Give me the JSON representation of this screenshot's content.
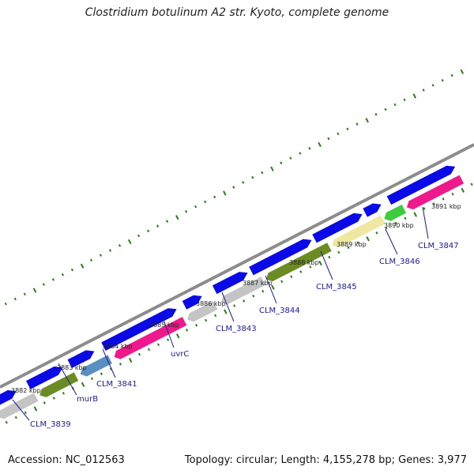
{
  "title": "Clostridium botulinum A2 str. Kyoto, complete genome",
  "footer": {
    "accession": "Accession: NC_012563",
    "topology": "Topology: circular; Length: 4,155,278 bp; Genes: 3,977"
  },
  "colors": {
    "backbone": "#8c8c8c",
    "forward_gene": "#0a0ae6",
    "reverse_grey": "#c4c4c4",
    "reverse_olive": "#6b8c23",
    "reverse_steelblue": "#5a8fc2",
    "reverse_magenta": "#ee1a8c",
    "reverse_khaki": "#efe7a2",
    "reverse_green": "#3ccc3c",
    "ticks": "#2a7d1a",
    "label_text": "#1a1aa0"
  },
  "kbp_labels": [
    "3882 kbp",
    "3883 kbp",
    "3884 kbp",
    "3885 kbp",
    "3886 kbp",
    "3887 kbp",
    "3888 kbp",
    "3889 kbp",
    "3890 kbp",
    "3891 kbp"
  ],
  "gene_labels": [
    "CLM_3839",
    "murB",
    "CLM_3841",
    "uvrC",
    "CLM_3843",
    "CLM_3844",
    "CLM_3845",
    "CLM_3846",
    "CLM_3847"
  ]
}
